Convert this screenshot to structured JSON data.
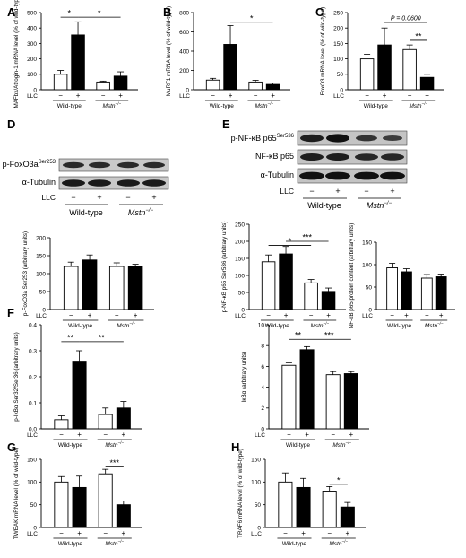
{
  "colors": {
    "minus": "#ffffff",
    "plus": "#000000",
    "stroke": "#000000"
  },
  "labels": {
    "llc": "LLC",
    "minus": "−",
    "plus": "+",
    "wt": "Wild-type",
    "mstn": "Mstn",
    "mstn_sup": "−/−",
    "star1": "*",
    "star2": "**",
    "star3": "***",
    "p_value": "P = 0.0600"
  },
  "blots": {
    "D": {
      "rows": [
        "p-FoxO3a",
        "α-Tubulin"
      ],
      "row0_sup": "Ser253"
    },
    "E": {
      "rows": [
        "p-NF-κB p65",
        "NF-κB p65",
        "α-Tubulin"
      ],
      "row0_sup": "Ser536"
    }
  },
  "chart_data": [
    {
      "panel": "A",
      "type": "bar",
      "ylabel": "MAFbx/Atrogin-1 mRNA level (% of wild-type)",
      "ylim": [
        0,
        500
      ],
      "ticks": [
        0,
        100,
        200,
        300,
        400,
        500
      ],
      "series": [
        {
          "name": "LLC −",
          "values": [
            100,
            50
          ]
        },
        {
          "name": "LLC +",
          "values": [
            355,
            88
          ]
        }
      ],
      "errors": [
        [
          25,
          6
        ],
        [
          85,
          28
        ]
      ],
      "annotations": [
        "*: Wild-type − vs +",
        "*: Wild-type + vs Mstn−/− +"
      ]
    },
    {
      "panel": "B",
      "type": "bar",
      "ylabel": "MuRF1 mRNA level (% of wild-type)",
      "ylim": [
        0,
        800
      ],
      "ticks": [
        0,
        200,
        400,
        600,
        800
      ],
      "series": [
        {
          "name": "LLC −",
          "values": [
            100,
            80
          ]
        },
        {
          "name": "LLC +",
          "values": [
            470,
            55
          ]
        }
      ],
      "errors": [
        [
          18,
          18
        ],
        [
          195,
          15
        ]
      ],
      "annotations": [
        "*: Wild-type + vs Mstn−/− +"
      ]
    },
    {
      "panel": "C",
      "type": "bar",
      "ylabel": "FoxO3 mRNA level (% of wild-type)",
      "ylim": [
        0,
        250
      ],
      "ticks": [
        0,
        50,
        100,
        150,
        200,
        250
      ],
      "series": [
        {
          "name": "LLC −",
          "values": [
            100,
            130
          ]
        },
        {
          "name": "LLC +",
          "values": [
            145,
            40
          ]
        }
      ],
      "errors": [
        [
          15,
          15
        ],
        [
          55,
          10
        ]
      ],
      "annotations": [
        "P = 0.0600: Wild-type + vs Mstn−/− +",
        "**: Mstn−/− − vs +"
      ]
    },
    {
      "panel": "D",
      "type": "bar",
      "ylabel": "p-FoxO3a Ser253 (arbitrary units)",
      "ylim": [
        0,
        200
      ],
      "ticks": [
        0,
        50,
        100,
        150,
        200
      ],
      "series": [
        {
          "name": "LLC −",
          "values": [
            120,
            120
          ]
        },
        {
          "name": "LLC +",
          "values": [
            138,
            120
          ]
        }
      ],
      "errors": [
        [
          12,
          10
        ],
        [
          14,
          6
        ]
      ],
      "annotations": []
    },
    {
      "panel": "E1",
      "type": "bar",
      "ylabel": "p-NF-κB p65 Ser536 (arbitrary units)",
      "ylim": [
        0,
        250
      ],
      "ticks": [
        0,
        50,
        100,
        150,
        200,
        250
      ],
      "series": [
        {
          "name": "LLC −",
          "values": [
            140,
            78
          ]
        },
        {
          "name": "LLC +",
          "values": [
            163,
            53
          ]
        }
      ],
      "errors": [
        [
          20,
          10
        ],
        [
          22,
          10
        ]
      ],
      "annotations": [
        "*: Wild-type − vs Mstn−/− −",
        "***: Wild-type + vs Mstn−/− +"
      ]
    },
    {
      "panel": "E2",
      "type": "bar",
      "ylabel": "NF-κB p65 protein content (arbitrary units)",
      "ylim": [
        0,
        150
      ],
      "ticks": [
        0,
        50,
        100,
        150
      ],
      "series": [
        {
          "name": "LLC −",
          "values": [
            93,
            70
          ]
        },
        {
          "name": "LLC +",
          "values": [
            84,
            73
          ]
        }
      ],
      "errors": [
        [
          10,
          8
        ],
        [
          7,
          6
        ]
      ],
      "annotations": []
    },
    {
      "panel": "F1",
      "type": "bar",
      "ylabel": "p-IκBα Ser32/Ser36 (arbitrary units)",
      "ylim": [
        0,
        0.4
      ],
      "ticks": [
        0,
        0.1,
        0.2,
        0.3,
        0.4
      ],
      "tick_labels": [
        "0.0",
        "0.1",
        "0.2",
        "0.3",
        "0.4"
      ],
      "series": [
        {
          "name": "LLC −",
          "values": [
            0.035,
            0.055
          ]
        },
        {
          "name": "LLC +",
          "values": [
            0.26,
            0.08
          ]
        }
      ],
      "errors": [
        [
          0.015,
          0.025
        ],
        [
          0.04,
          0.025
        ]
      ],
      "annotations": [
        "**: Wild-type − vs +",
        "**: Wild-type + vs Mstn−/− +"
      ]
    },
    {
      "panel": "F2",
      "type": "bar",
      "ylabel": "IκBα (arbitrary units)",
      "ylim": [
        0,
        10
      ],
      "ticks": [
        0,
        2,
        4,
        6,
        8,
        10
      ],
      "series": [
        {
          "name": "LLC −",
          "values": [
            6.1,
            5.2
          ]
        },
        {
          "name": "LLC +",
          "values": [
            7.6,
            5.3
          ]
        }
      ],
      "errors": [
        [
          0.25,
          0.3
        ],
        [
          0.3,
          0.2
        ]
      ],
      "annotations": [
        "**: Wild-type − vs +",
        "***: Wild-type + vs Mstn−/− +"
      ]
    },
    {
      "panel": "G",
      "type": "bar",
      "ylabel": "TWEAK mRNA level (% of wild-type)",
      "ylim": [
        0,
        150
      ],
      "ticks": [
        0,
        50,
        100,
        150
      ],
      "series": [
        {
          "name": "LLC −",
          "values": [
            100,
            118
          ]
        },
        {
          "name": "LLC +",
          "values": [
            88,
            50
          ]
        }
      ],
      "errors": [
        [
          12,
          10
        ],
        [
          25,
          8
        ]
      ],
      "annotations": [
        "***: Mstn−/− − vs +"
      ]
    },
    {
      "panel": "H",
      "type": "bar",
      "ylabel": "TRAF6 mRNA level (% of wild-type)",
      "ylim": [
        0,
        150
      ],
      "ticks": [
        0,
        50,
        100,
        150
      ],
      "series": [
        {
          "name": "LLC −",
          "values": [
            100,
            80
          ]
        },
        {
          "name": "LLC +",
          "values": [
            88,
            45
          ]
        }
      ],
      "errors": [
        [
          20,
          10
        ],
        [
          20,
          10
        ]
      ],
      "annotations": [
        "*: Mstn−/− − vs +"
      ]
    }
  ]
}
